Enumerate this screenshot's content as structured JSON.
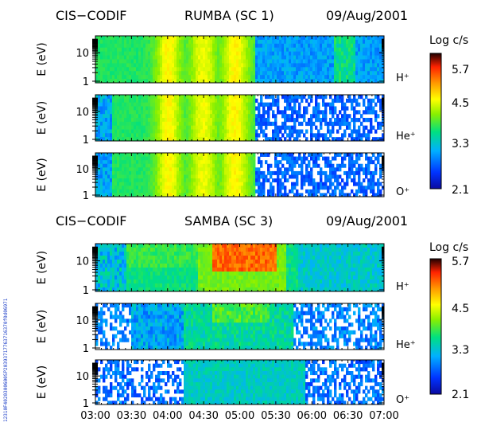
{
  "chart_data": {
    "type": "heatmap",
    "time_ticks": [
      "03:00",
      "03:30",
      "04:00",
      "04:30",
      "05:00",
      "05:30",
      "06:00",
      "06:30",
      "07:00"
    ],
    "y_ticks": [
      "1",
      "10"
    ],
    "y_axis_label": "E (eV)",
    "colorbar": {
      "title": "Log c/s",
      "ticks": [
        "5.7",
        "4.5",
        "3.3",
        "2.1"
      ],
      "range": [
        2.1,
        5.7
      ]
    },
    "species": [
      "H⁺",
      "He⁺",
      "O⁺"
    ],
    "groups": [
      {
        "instrument": "CIS−CODIF",
        "spacecraft": "RUMBA (SC 1)",
        "date": "09/Aug/2001",
        "panels": [
          {
            "species": "H⁺"
          },
          {
            "species": "He⁺"
          },
          {
            "species": "O⁺"
          }
        ]
      },
      {
        "instrument": "CIS−CODIF",
        "spacecraft": "SAMBA (SC 3)",
        "date": "09/Aug/2001",
        "panels": [
          {
            "species": "H⁺"
          },
          {
            "species": "He⁺"
          },
          {
            "species": "O⁺"
          }
        ]
      }
    ],
    "side_label": "12310F4020300600SP20393717763716370f0d06971"
  }
}
